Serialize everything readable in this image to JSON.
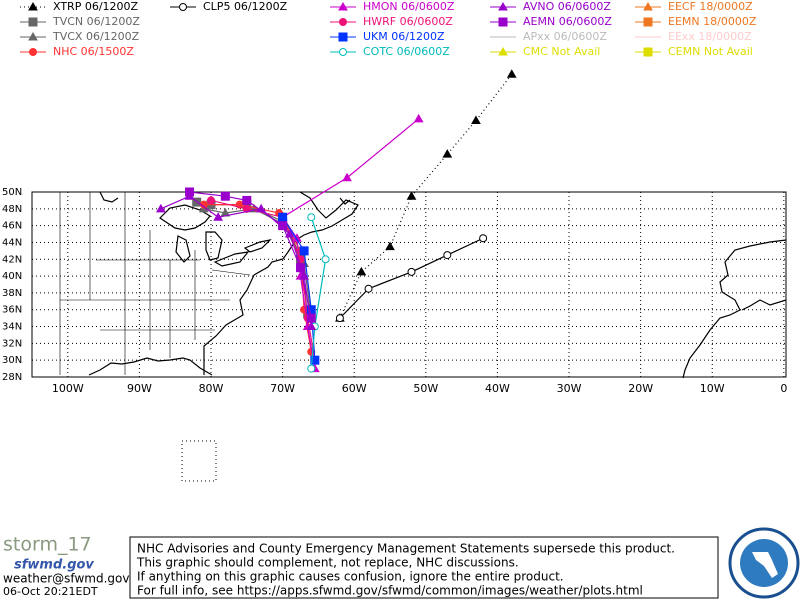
{
  "header": {
    "legend": [
      [
        {
          "label": "XTRP 06/1200Z",
          "color": "#000000",
          "marker": "triangle",
          "dash": true,
          "track": {
            "lon": [
              -62,
              -59,
              -55,
              -52,
              -47,
              -43,
              -38
            ],
            "lat": [
              35,
              40.5,
              43.5,
              49.5,
              54.5,
              58.5,
              64
            ]
          }
        },
        {
          "label": "TVCN 06/1200Z",
          "color": "#666666",
          "marker": "square",
          "track": {
            "lon": [
              -66.5,
              -67.5,
              -70,
              -75,
              -80,
              -82
            ],
            "lat": [
              35.5,
              42,
              46.5,
              48.5,
              48.5,
              48.8
            ]
          }
        },
        {
          "label": "TVCX 06/1200Z",
          "color": "#666666",
          "marker": "triangle",
          "track": {
            "lon": [
              -66,
              -67,
              -69.5,
              -74,
              -78,
              -81
            ],
            "lat": [
              35,
              41.5,
              46,
              48,
              47.5,
              48
            ]
          }
        },
        {
          "label": "NHC 06/1500Z",
          "color": "#ff3333",
          "marker": "circle",
          "track": {
            "lon": [
              -66,
              -67,
              -67.5,
              -70.5,
              -76,
              -81
            ],
            "lat": [
              31,
              36,
              43,
              47.5,
              48.5,
              48.5
            ]
          }
        }
      ],
      [
        {
          "label": "CLP5 06/1200Z",
          "color": "#000000",
          "marker": "open-circle",
          "track": {
            "lon": [
              -62,
              -58,
              -52,
              -47,
              -42
            ],
            "lat": [
              35,
              38.5,
              40.5,
              42.5,
              44.5
            ]
          }
        }
      ],
      [
        {
          "label": "HMON 06/0600Z",
          "color": "#cc00cc",
          "marker": "triangle",
          "track": {
            "lon": [
              -65.5,
              -66.5,
              -67.5,
              -68,
              -70,
              -61,
              -51
            ],
            "lat": [
              29,
              34,
              40,
              44.5,
              47,
              51.7,
              58.7
            ]
          }
        },
        {
          "label": "HWRF 06/0600Z",
          "color": "#ee1177",
          "marker": "circle",
          "track": {
            "lon": [
              -65.5,
              -66.5,
              -67.5,
              -70,
              -75,
              -80
            ],
            "lat": [
              30,
              35,
              42,
              47,
              48,
              49
            ]
          }
        },
        {
          "label": "UKM 06/1200Z",
          "color": "#0033ff",
          "marker": "square",
          "track": {
            "lon": [
              -65.5,
              -66,
              -67,
              -70
            ],
            "lat": [
              30,
              36,
              43,
              47
            ]
          }
        },
        {
          "label": "COTC 06/0600Z",
          "color": "#00bbbb",
          "marker": "open-circle",
          "track": {
            "lon": [
              -66,
              -65.5,
              -64,
              -66
            ],
            "lat": [
              29,
              34,
              42,
              47
            ]
          }
        }
      ],
      [
        {
          "label": "AVNO 06/0600Z",
          "color": "#9900cc",
          "marker": "triangle",
          "track": {
            "lon": [
              -66,
              -67,
              -69,
              -73,
              -79,
              -83,
              -87
            ],
            "lat": [
              34,
              40,
              45,
              48,
              47,
              49.5,
              48
            ]
          }
        },
        {
          "label": "AEMN 06/0600Z",
          "color": "#9900cc",
          "marker": "square",
          "track": {
            "lon": [
              -66,
              -67.5,
              -70,
              -75,
              -78,
              -83
            ],
            "lat": [
              35,
              41,
              46,
              49,
              49.5,
              50
            ]
          }
        },
        {
          "label": "APxx 06/0600Z",
          "color": "#bbbbbb",
          "marker": "none"
        },
        {
          "label": "CMC Not Avail",
          "color": "#dddd00",
          "marker": "triangle"
        }
      ],
      [
        {
          "label": "EECF 18/0000Z",
          "color": "#ee7722",
          "marker": "triangle"
        },
        {
          "label": "EEMN 18/0000Z",
          "color": "#ee7722",
          "marker": "square"
        },
        {
          "label": "EExx 18/0000Z",
          "color": "#ffcccc",
          "marker": "none"
        },
        {
          "label": "CEMN Not Avail",
          "color": "#dddd00",
          "marker": "square"
        }
      ]
    ]
  },
  "map": {
    "lonlim": [
      -105,
      0.3
    ],
    "latlim": [
      28,
      50
    ],
    "lonticks": [
      {
        "value": -100,
        "label": "100W"
      },
      {
        "value": -90,
        "label": "90W"
      },
      {
        "value": -80,
        "label": "80W"
      },
      {
        "value": -70,
        "label": "70W"
      },
      {
        "value": -60,
        "label": "60W"
      },
      {
        "value": -50,
        "label": "50W"
      },
      {
        "value": -40,
        "label": "40W"
      },
      {
        "value": -30,
        "label": "30W"
      },
      {
        "value": -20,
        "label": "20W"
      },
      {
        "value": -10,
        "label": "10W"
      },
      0
    ],
    "latticks": [
      {
        "value": 50,
        "label": "50N"
      },
      {
        "value": 48,
        "label": "48N"
      },
      {
        "value": 46,
        "label": "46N"
      },
      {
        "value": 44,
        "label": "44N"
      },
      {
        "value": 42,
        "label": "42N"
      },
      {
        "value": 40,
        "label": "40N"
      },
      {
        "value": 38,
        "label": "38N"
      },
      {
        "value": 36,
        "label": "36N"
      },
      {
        "value": 34,
        "label": "34N"
      },
      {
        "value": 32,
        "label": "32N"
      },
      {
        "value": 30,
        "label": "30N"
      },
      {
        "value": 28,
        "label": "28N"
      }
    ]
  },
  "footer": {
    "brand": "storm_17",
    "site": "sfwmd.gov",
    "email": "weather@sfwmd.gov",
    "timestamp": "06-Oct 20:21EDT",
    "notice": [
      "NHC Advisories and County Emergency Management Statements supersede this product.",
      "This graphic should complement, not replace, NHC discussions.",
      "If anything on this graphic causes confusion, ignore the entire product.",
      "For full info, see  https://apps.sfwmd.gov/sfwmd/common/images/weather/plots.html"
    ]
  }
}
